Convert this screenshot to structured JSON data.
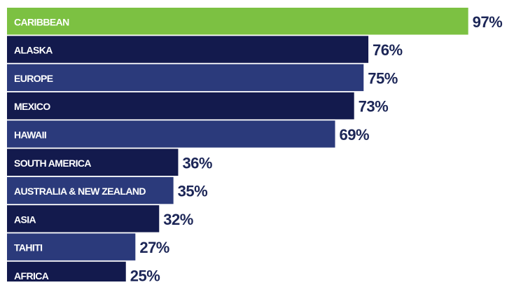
{
  "chart_data": {
    "type": "bar",
    "orientation": "horizontal",
    "categories": [
      "CARIBBEAN",
      "ALASKA",
      "EUROPE",
      "MEXICO",
      "HAWAII",
      "SOUTH AMERICA",
      "AUSTRALIA & NEW ZEALAND",
      "ASIA",
      "TAHITI",
      "AFRICA"
    ],
    "values": [
      97,
      76,
      75,
      73,
      69,
      36,
      35,
      32,
      27,
      25
    ],
    "value_labels": [
      "97%",
      "76%",
      "75%",
      "73%",
      "69%",
      "36%",
      "35%",
      "32%",
      "27%",
      "25%"
    ],
    "colors": [
      "#7cc142",
      "#131a4d",
      "#2b3a7b",
      "#131a4d",
      "#2b3a7b",
      "#131a4d",
      "#2b3a7b",
      "#131a4d",
      "#2b3a7b",
      "#131a4d"
    ]
  }
}
